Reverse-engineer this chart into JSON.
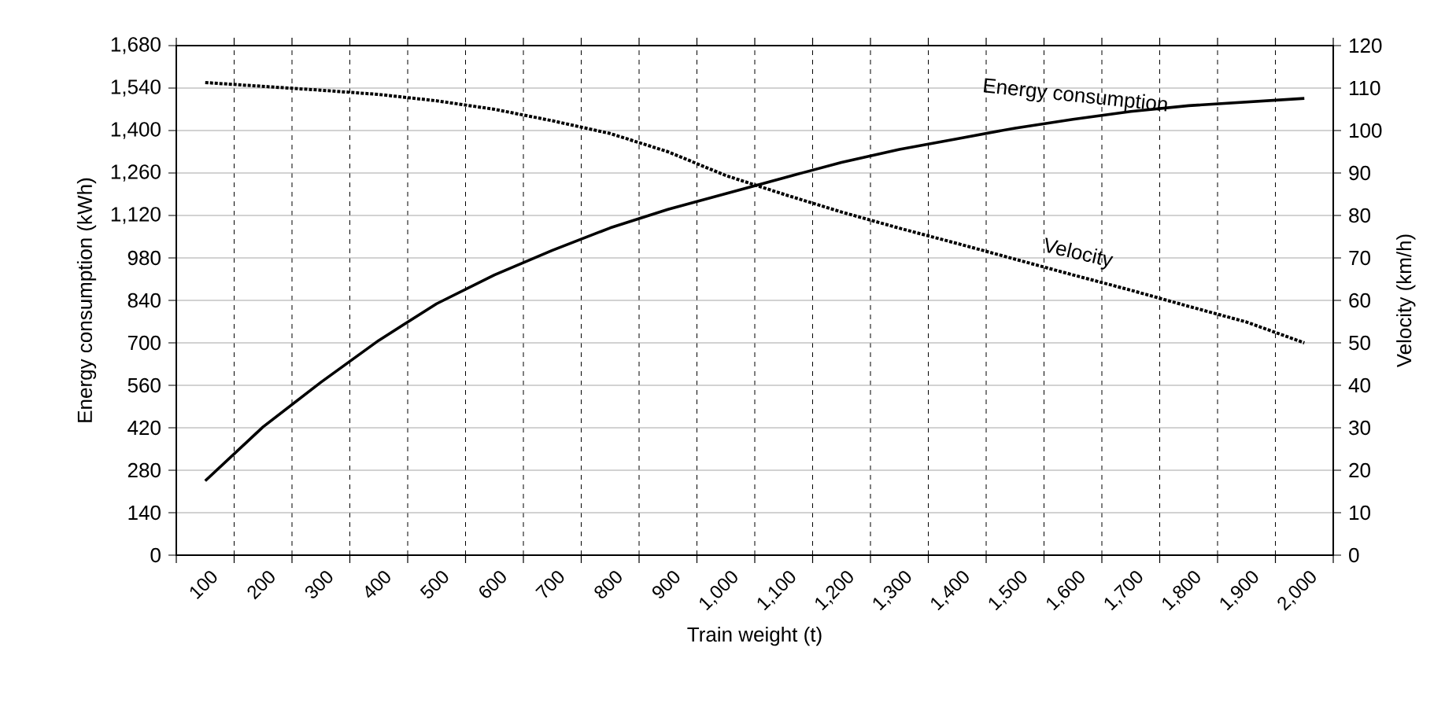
{
  "chart_data": {
    "type": "line",
    "xlabel": "Train weight (t)",
    "ylabel": "Energy consumption (kWh)",
    "y2label": "Velocity (km/h)",
    "categories": [
      "100",
      "200",
      "300",
      "400",
      "500",
      "600",
      "700",
      "800",
      "900",
      "1,000",
      "1,100",
      "1,200",
      "1,300",
      "1,400",
      "1,500",
      "1,600",
      "1,700",
      "1,800",
      "1,900",
      "2,000"
    ],
    "series": [
      {
        "name": "Energy consumption",
        "color": "#000000",
        "line_style": "solid",
        "values": [
          245,
          423,
          570,
          708,
          829,
          924,
          1005,
          1079,
          1140,
          1192,
          1244,
          1295,
          1338,
          1373,
          1408,
          1437,
          1463,
          1482,
          1494,
          1506
        ]
      },
      {
        "name": "Velocity",
        "color": "#000000",
        "line_style": "dotted",
        "axis": "y2",
        "values": [
          111.3,
          110.4,
          109.5,
          108.5,
          107,
          105,
          102.3,
          99.3,
          95,
          89.4,
          85,
          80.8,
          77,
          73.4,
          69.7,
          66,
          62.4,
          58.6,
          54.9,
          50
        ]
      }
    ],
    "ylim": [
      0,
      1680
    ],
    "yticks": [
      0,
      140,
      280,
      420,
      560,
      700,
      840,
      980,
      {
        "value": 1120,
        "label": "1,120"
      },
      {
        "value": 1260,
        "label": "1,260"
      },
      {
        "value": 1400,
        "label": "1,400"
      },
      {
        "value": 1540,
        "label": "1,540"
      },
      {
        "value": 1680,
        "label": "1,680"
      }
    ],
    "y2lim": [
      0,
      120
    ],
    "y2ticks": [
      0,
      10,
      20,
      30,
      40,
      50,
      60,
      70,
      80,
      90,
      100,
      110,
      120
    ],
    "grid": true
  }
}
